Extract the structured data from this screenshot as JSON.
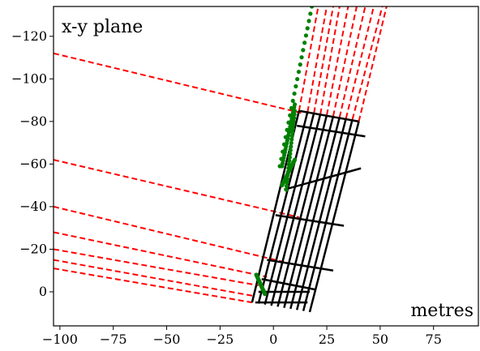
{
  "chart_data": {
    "type": "line",
    "annotations": {
      "top_left": "x-y plane",
      "bottom_right": "metres"
    },
    "xlim": [
      -103,
      96
    ],
    "ylim": [
      16,
      -134
    ],
    "x_ticks": [
      -100,
      -75,
      -50,
      -25,
      0,
      25,
      50,
      75
    ],
    "y_ticks": [
      0,
      -20,
      -40,
      -60,
      -80,
      -100,
      -120
    ],
    "x_tick_labels": [
      "−100",
      "−75",
      "−50",
      "−25",
      "0",
      "25",
      "50",
      "75"
    ],
    "y_tick_labels": [
      "0",
      "−20",
      "−40",
      "−60",
      "−80",
      "−100",
      "−120"
    ],
    "grid": false,
    "grid_rows": [
      {
        "left": [
          -8.5,
          5
        ],
        "right": [
          16,
          5
        ]
      },
      {
        "left": [
          -7,
          0
        ],
        "right": [
          17,
          0
        ]
      },
      {
        "left": [
          -5.5,
          -6
        ],
        "right": [
          20,
          -1
        ]
      },
      {
        "left": [
          -3,
          -15
        ],
        "right": [
          28,
          -10
        ]
      },
      {
        "left": [
          1,
          -36
        ],
        "right": [
          33,
          -31
        ]
      },
      {
        "left": [
          5,
          -48
        ],
        "right": [
          41,
          -58
        ]
      },
      {
        "left": [
          11,
          -78
        ],
        "right": [
          43,
          -73
        ]
      },
      {
        "left": [
          12,
          -85
        ],
        "right": [
          40,
          -80
        ]
      }
    ],
    "grid_columns": [
      {
        "bottom": [
          -10,
          5
        ],
        "top": [
          12,
          -85
        ]
      },
      {
        "bottom": [
          -7,
          5.5
        ],
        "top": [
          16,
          -84.5
        ]
      },
      {
        "bottom": [
          -4,
          6
        ],
        "top": [
          19,
          -84
        ]
      },
      {
        "bottom": [
          -1,
          6.5
        ],
        "top": [
          22,
          -83.5
        ]
      },
      {
        "bottom": [
          2,
          7
        ],
        "top": [
          25,
          -83
        ]
      },
      {
        "bottom": [
          5,
          7.5
        ],
        "top": [
          28,
          -82.5
        ]
      },
      {
        "bottom": [
          8,
          8
        ],
        "top": [
          31,
          -82
        ]
      },
      {
        "bottom": [
          11,
          8.5
        ],
        "top": [
          34,
          -81.5
        ]
      },
      {
        "bottom": [
          14,
          9
        ],
        "top": [
          37,
          -81
        ]
      },
      {
        "bottom": [
          17,
          9.5
        ],
        "top": [
          40,
          -80
        ]
      }
    ],
    "red_dashed_left": [
      {
        "from": [
          -103,
          -112
        ],
        "to": [
          13,
          -84
        ]
      },
      {
        "from": [
          -103,
          -62
        ],
        "to": [
          12,
          -35
        ]
      },
      {
        "from": [
          -103,
          -40
        ],
        "to": [
          5,
          -14
        ]
      },
      {
        "from": [
          -103,
          -28
        ],
        "to": [
          -3,
          -7
        ]
      },
      {
        "from": [
          -103,
          -20
        ],
        "to": [
          -7,
          -3
        ]
      },
      {
        "from": [
          -103,
          -15
        ],
        "to": [
          -9,
          2
        ]
      },
      {
        "from": [
          -103,
          -11
        ],
        "to": [
          -10,
          5
        ]
      }
    ],
    "red_dashed_up": [
      {
        "from": [
          12,
          -85
        ],
        "to": [
          21,
          -134
        ]
      },
      {
        "from": [
          16,
          -84.5
        ],
        "to": [
          25,
          -134
        ]
      },
      {
        "from": [
          19,
          -84
        ],
        "to": [
          28,
          -134
        ]
      },
      {
        "from": [
          22,
          -83.5
        ],
        "to": [
          31,
          -134
        ]
      },
      {
        "from": [
          25,
          -83
        ],
        "to": [
          35,
          -134
        ]
      },
      {
        "from": [
          28,
          -82.5
        ],
        "to": [
          39,
          -134
        ]
      },
      {
        "from": [
          31,
          -82
        ],
        "to": [
          43,
          -134
        ]
      },
      {
        "from": [
          34,
          -81.5
        ],
        "to": [
          47,
          -134
        ]
      },
      {
        "from": [
          37,
          -81
        ],
        "to": [
          51,
          -134
        ]
      },
      {
        "from": [
          40,
          -80
        ],
        "to": [
          53,
          -134
        ]
      }
    ],
    "green_segments": [
      {
        "from": [
          3,
          -59
        ],
        "to": [
          18,
          -134
        ]
      },
      {
        "from": [
          4,
          -59
        ],
        "to": [
          10,
          -88
        ]
      },
      {
        "from": [
          4,
          -50
        ],
        "to": [
          10,
          -62
        ]
      },
      {
        "from": [
          6,
          -48
        ],
        "to": [
          10,
          -85
        ]
      },
      {
        "from": [
          -8,
          -8
        ],
        "to": [
          -4,
          1
        ]
      }
    ],
    "colors": {
      "frame": "#000000",
      "grid": "#000000",
      "red": "#ff0000",
      "green": "#008000"
    }
  }
}
